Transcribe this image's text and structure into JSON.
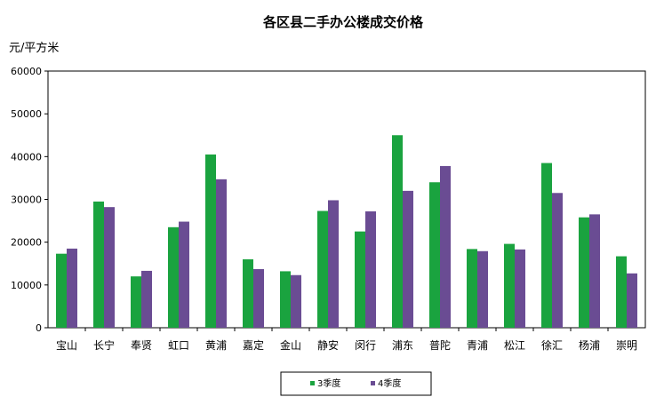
{
  "chart_data": {
    "type": "bar",
    "title": "各区县二手办公楼成交价格",
    "ylabel": "元/平方米",
    "xlabel": "",
    "ylim": [
      0,
      60000
    ],
    "yticks": [
      "0",
      "10000",
      "20000",
      "30000",
      "40000",
      "50000",
      "60000"
    ],
    "grid": false,
    "legend_position": "bottom",
    "categories": [
      "宝山",
      "长宁",
      "奉贤",
      "虹口",
      "黄浦",
      "嘉定",
      "金山",
      "静安",
      "闵行",
      "浦东",
      "普陀",
      "青浦",
      "松江",
      "徐汇",
      "杨浦",
      "崇明"
    ],
    "series": [
      {
        "name": "3季度",
        "color": "#1aa33f",
        "values": [
          17300,
          29500,
          12000,
          23500,
          40500,
          16000,
          13200,
          27300,
          22500,
          45000,
          34000,
          18400,
          19600,
          38500,
          25800,
          16700
        ]
      },
      {
        "name": "4季度",
        "color": "#6a4c93",
        "values": [
          18500,
          28200,
          13300,
          24800,
          34700,
          13700,
          12300,
          29800,
          27200,
          32000,
          37800,
          17900,
          18300,
          31500,
          26500,
          12700
        ]
      }
    ]
  }
}
